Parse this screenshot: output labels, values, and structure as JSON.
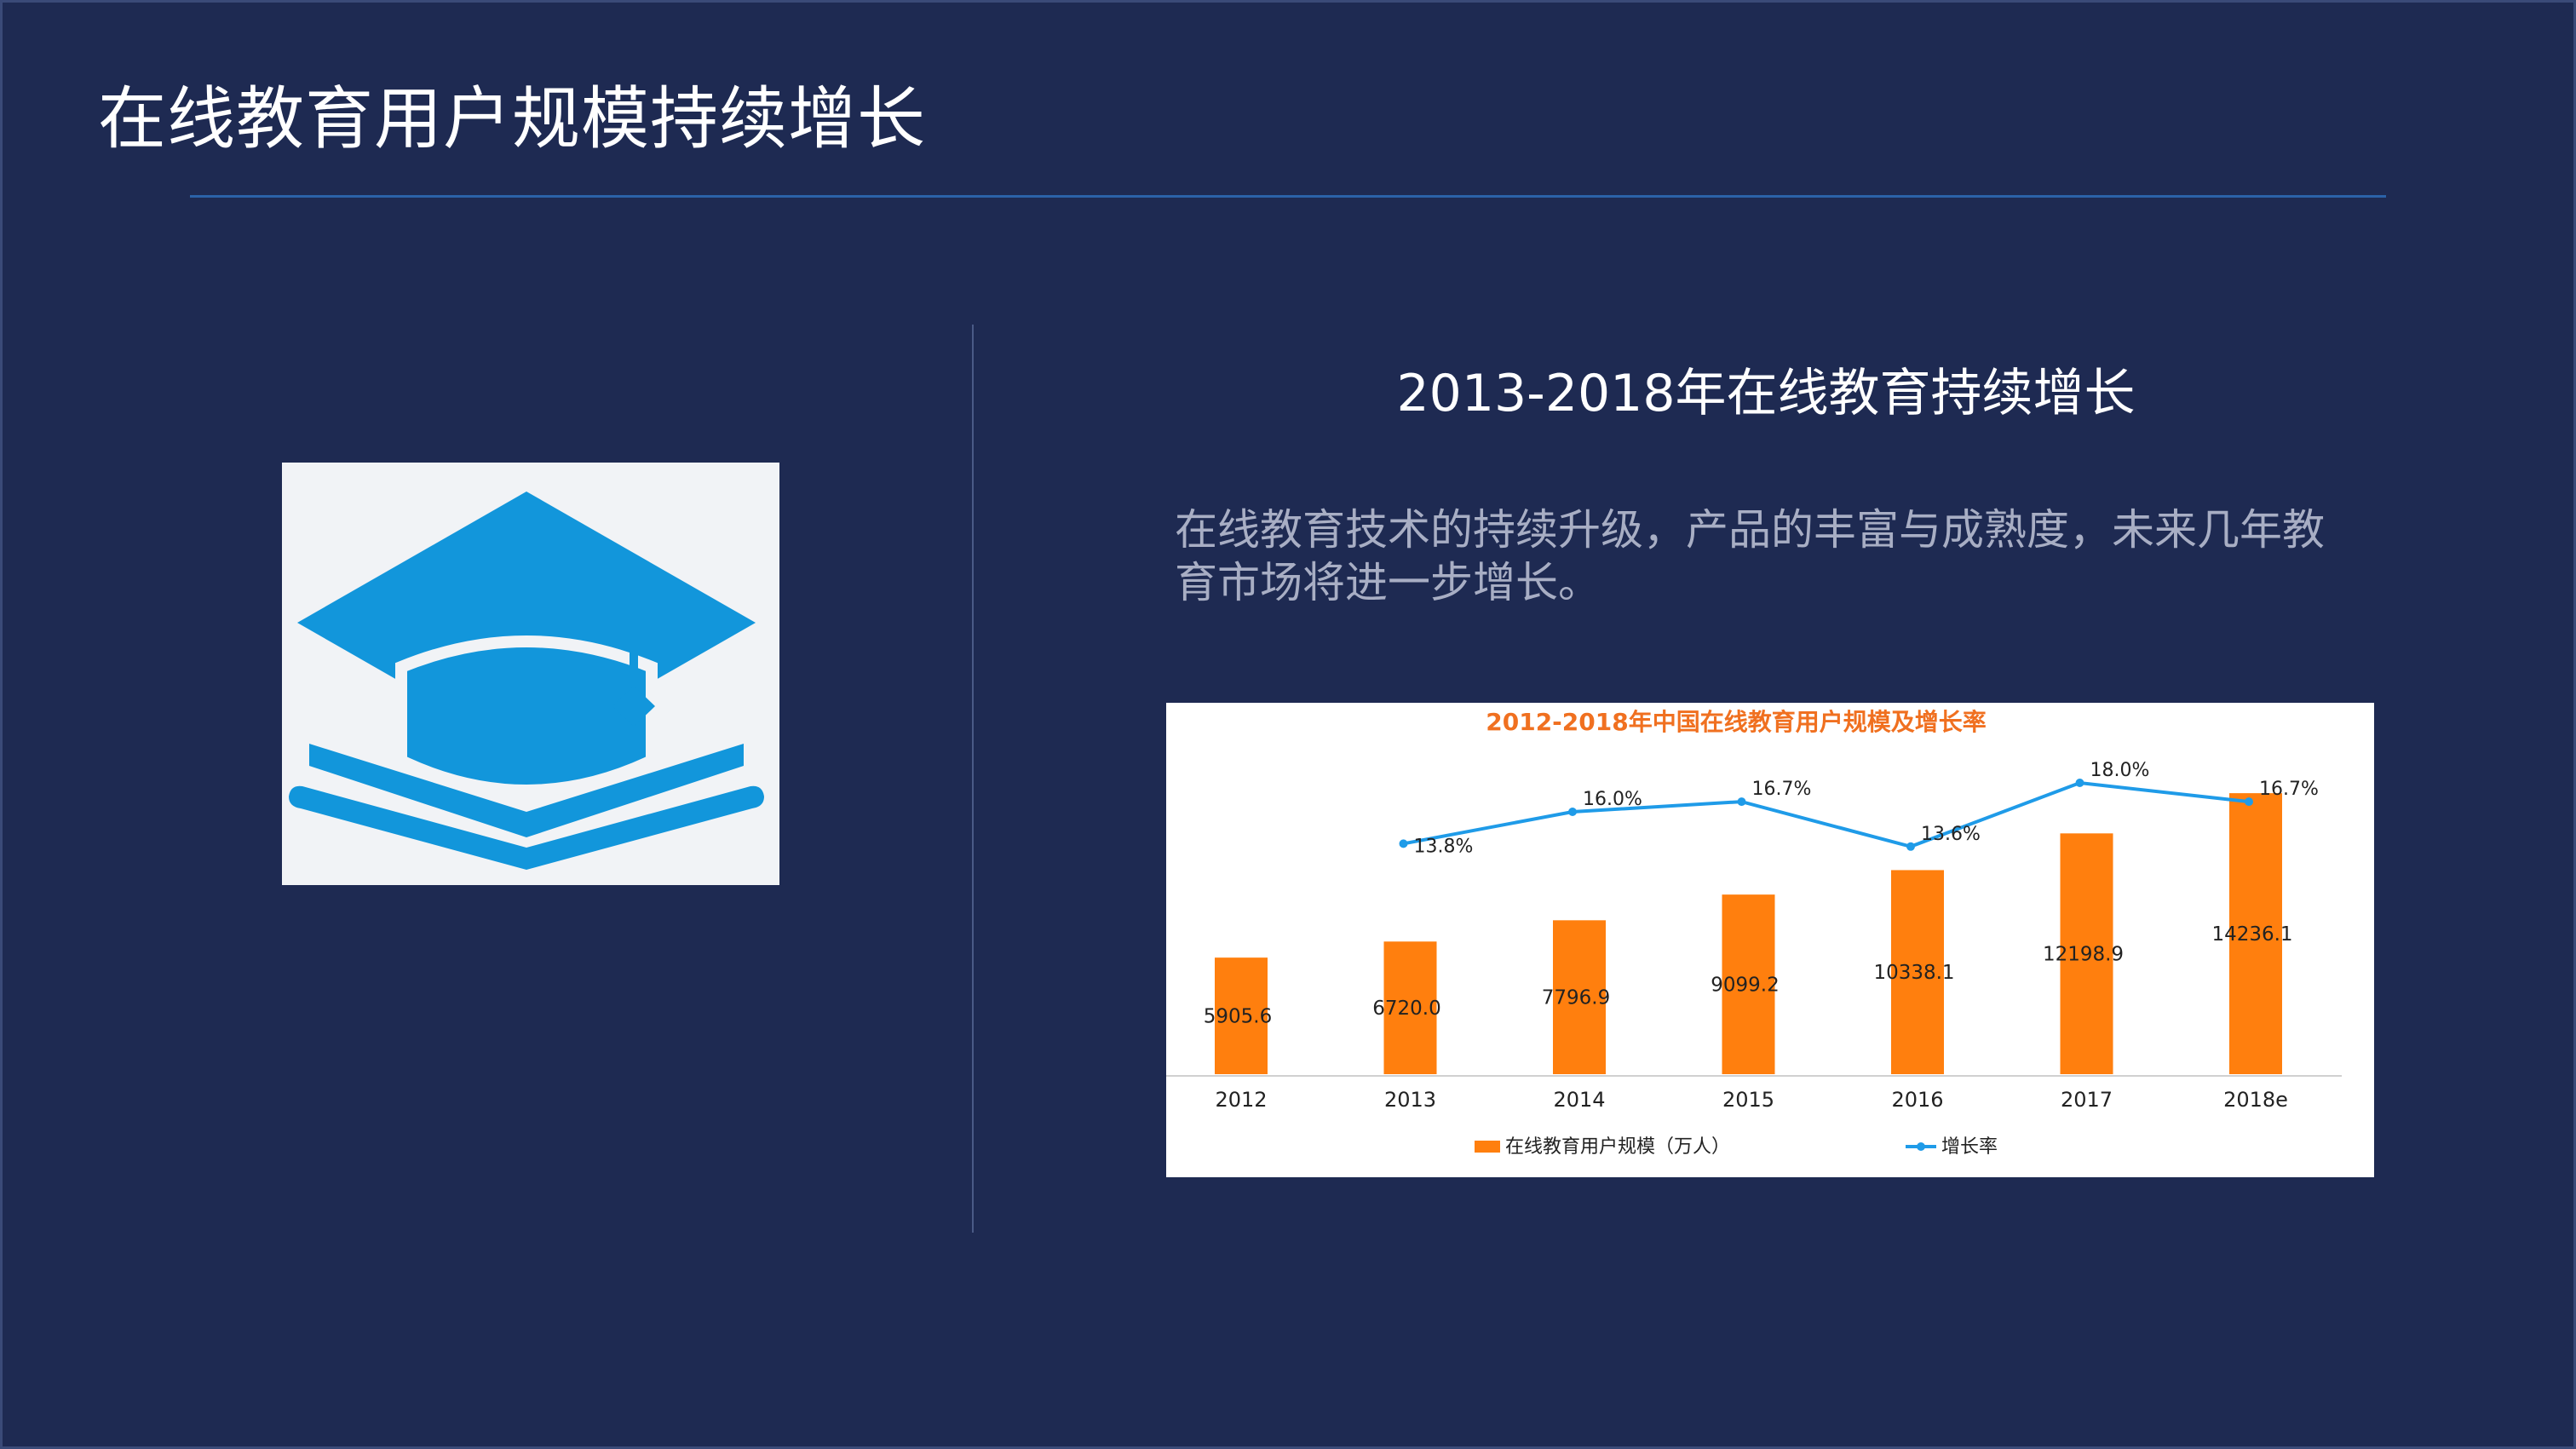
{
  "slide": {
    "title": "在线教育用户规模持续增长",
    "subtitle": "2013-2018年在线教育持续增长",
    "description": "在线教育技术的持续升级，产品的丰富与成熟度，未来几年教育市场将进一步增长。"
  },
  "colors": {
    "background": "#1e2a52",
    "bar": "#ff7f0e",
    "line": "#1f9be8",
    "chart_title": "#f07020",
    "logo": "#1296db"
  },
  "icon": "graduation-cap-on-book-icon",
  "chart_data": {
    "type": "bar",
    "title": "2012-2018年中国在线教育用户规模及增长率",
    "categories": [
      "2012",
      "2013",
      "2014",
      "2015",
      "2016",
      "2017",
      "2018e"
    ],
    "series": [
      {
        "name": "在线教育用户规模（万人）",
        "type": "bar",
        "values": [
          5905.6,
          6720.0,
          7796.9,
          9099.2,
          10338.1,
          12198.9,
          14236.1
        ],
        "labels": [
          "5905.6",
          "6720.0",
          "7796.9",
          "9099.2",
          "10338.1",
          "12198.9",
          "14236.1"
        ]
      },
      {
        "name": "增长率",
        "type": "line",
        "values": [
          null,
          13.8,
          16.0,
          16.7,
          13.6,
          18.0,
          16.7
        ],
        "labels": [
          "",
          "13.8%",
          "16.0%",
          "16.7%",
          "13.6%",
          "18.0%",
          "16.7%"
        ]
      }
    ],
    "ylim": [
      0,
      14500
    ],
    "y2lim": [
      0,
      20
    ],
    "grid": false,
    "legend_position": "bottom"
  }
}
